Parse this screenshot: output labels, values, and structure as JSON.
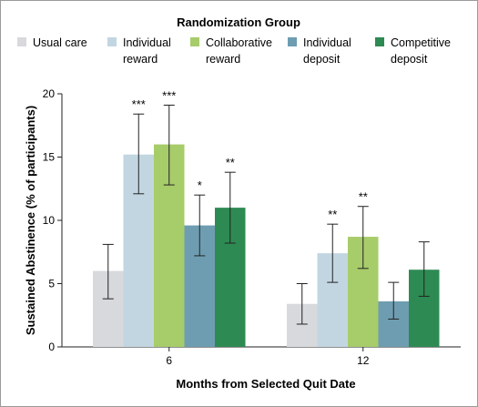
{
  "chart_data": {
    "type": "bar",
    "legend_title": "Randomization Group",
    "legend_placement": "top",
    "xlabel": "Months from Selected Quit Date",
    "ylabel": "Sustained Abstinence (% of participants)",
    "ylim": [
      0,
      20
    ],
    "yticks": [
      0,
      5,
      10,
      15,
      20
    ],
    "grid": false,
    "categories": [
      "6",
      "12"
    ],
    "series": [
      {
        "name": "Usual care",
        "label_lines": [
          "Usual care"
        ],
        "color": "#d8d9dc",
        "values": [
          6.0,
          3.4
        ],
        "ci_low": [
          3.8,
          1.8
        ],
        "ci_high": [
          8.1,
          5.0
        ],
        "significance": [
          "",
          ""
        ]
      },
      {
        "name": "Individual reward",
        "label_lines": [
          "Individual",
          "reward"
        ],
        "color": "#c2d6e1",
        "values": [
          15.2,
          7.4
        ],
        "ci_low": [
          12.1,
          5.1
        ],
        "ci_high": [
          18.4,
          9.7
        ],
        "significance": [
          "***",
          "**"
        ]
      },
      {
        "name": "Collaborative reward",
        "label_lines": [
          "Collaborative",
          "reward"
        ],
        "color": "#a7cc6a",
        "values": [
          16.0,
          8.7
        ],
        "ci_low": [
          12.8,
          6.2
        ],
        "ci_high": [
          19.1,
          11.1
        ],
        "significance": [
          "***",
          "**"
        ]
      },
      {
        "name": "Individual deposit",
        "label_lines": [
          "Individual",
          "deposit"
        ],
        "color": "#6e9db1",
        "values": [
          9.6,
          3.6
        ],
        "ci_low": [
          7.2,
          2.2
        ],
        "ci_high": [
          12.0,
          5.1
        ],
        "significance": [
          "*",
          ""
        ]
      },
      {
        "name": "Competitive deposit",
        "label_lines": [
          "Competitive",
          "deposit"
        ],
        "color": "#2e8a53",
        "values": [
          11.0,
          6.1
        ],
        "ci_low": [
          8.2,
          4.0
        ],
        "ci_high": [
          13.8,
          8.3
        ],
        "significance": [
          "**",
          ""
        ]
      }
    ]
  }
}
